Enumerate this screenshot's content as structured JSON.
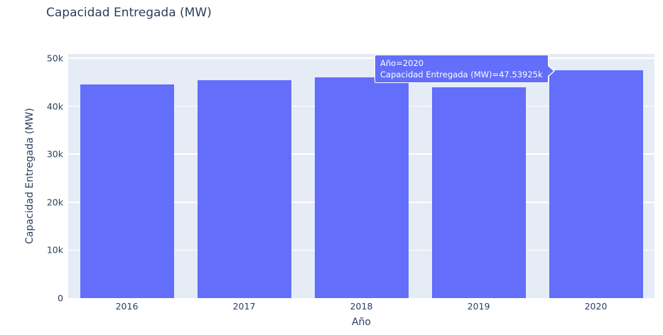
{
  "colors": {
    "bar": "#636efa",
    "plot_bg": "#e5ecf6",
    "grid": "#ffffff",
    "text": "#2a3f5f",
    "tooltip_bg": "#636efa",
    "tooltip_border": "#ffffff",
    "tooltip_text": "#ffffff",
    "page_bg": "#ffffff"
  },
  "tooltip": {
    "line1": "Año=2020",
    "line2": "Capacidad Entregada (MW)=47.53925k"
  },
  "chart_data": {
    "type": "bar",
    "title": "Capacidad Entregada (MW)",
    "xlabel": "Año",
    "ylabel": "Capacidad Entregada (MW)",
    "categories": [
      "2016",
      "2017",
      "2018",
      "2019",
      "2020"
    ],
    "values": [
      44480,
      45460,
      45960,
      43890,
      47539.25
    ],
    "hovered_category": "2020",
    "hovered_value_label": "47.53925k",
    "ylim": [
      0,
      50000
    ],
    "ytick_values": [
      0,
      10000,
      20000,
      30000,
      40000,
      50000
    ],
    "ytick_labels": [
      "0",
      "10k",
      "20k",
      "30k",
      "40k",
      "50k"
    ],
    "grid": true,
    "legend": "none"
  }
}
